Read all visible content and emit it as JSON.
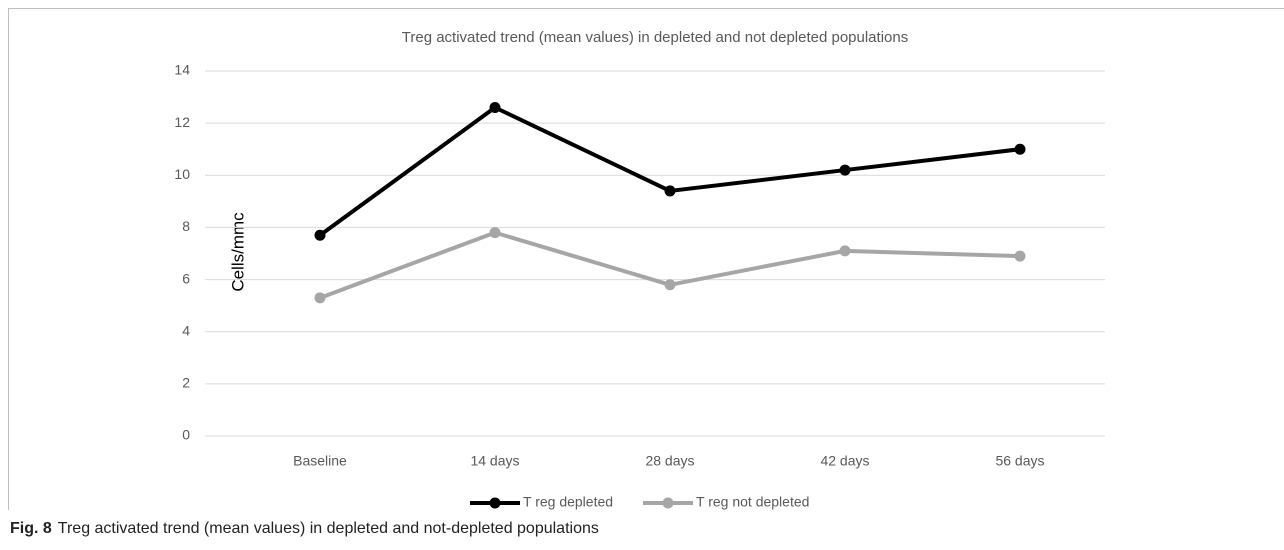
{
  "chart_data": {
    "type": "line",
    "title": "Treg activated trend (mean values) in depleted and not depleted populations",
    "ylabel": "Cells/mmc",
    "categories": [
      "Baseline",
      "14 days",
      "28 days",
      "42 days",
      "56 days"
    ],
    "series": [
      {
        "name": "T reg depleted",
        "color": "#000000",
        "values": [
          7.7,
          12.6,
          9.4,
          10.2,
          11.0
        ]
      },
      {
        "name": "T reg not depleted",
        "color": "#a6a6a6",
        "values": [
          5.3,
          7.8,
          5.8,
          7.1,
          6.9
        ]
      }
    ],
    "ylim": [
      0,
      14
    ],
    "yticks": [
      0,
      2,
      4,
      6,
      8,
      10,
      12,
      14
    ],
    "grid": true,
    "legend": "bottom"
  },
  "caption": {
    "label": "Fig. 8",
    "text": "Treg activated trend (mean values) in depleted and not-depleted populations"
  }
}
